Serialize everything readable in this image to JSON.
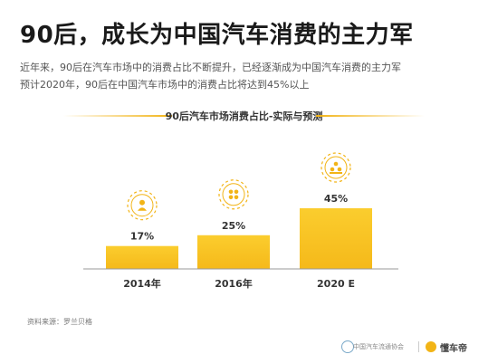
{
  "header": {
    "title": "90后，成长为中国汽车消费的主力军",
    "subtitle_line1": "近年来，90后在汽车市场中的消费占比不断提升，已经逐渐成为中国汽车消费的主力军",
    "subtitle_line2": "预计2020年，90后在中国汽车市场中的消费占比将达到45%以上"
  },
  "chart_data": {
    "type": "bar",
    "title": "90后汽车市场消费占比-实际与预测",
    "categories": [
      "2014年",
      "2016年",
      "2020 E"
    ],
    "values": [
      17,
      25,
      45
    ],
    "value_labels": [
      "17%",
      "25%",
      "45%"
    ],
    "ylim": [
      0,
      45
    ],
    "grid": false,
    "bar_color": "#f5b91a",
    "icons": [
      "person-icon",
      "group-icon",
      "crowd-icon"
    ]
  },
  "footer": {
    "source": "资料来源：罗兰贝格",
    "logo1": "中国汽车流通协会",
    "logo2": "懂车帝"
  },
  "colors": {
    "accent": "#f2b416",
    "bar": "#f5b91a"
  }
}
